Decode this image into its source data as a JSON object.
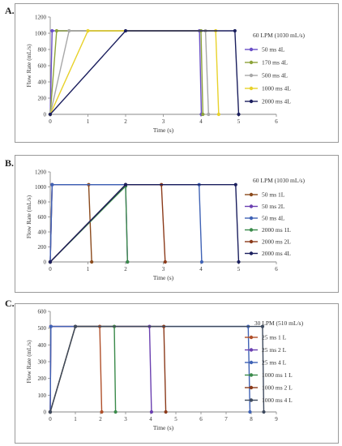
{
  "chart_data": [
    {
      "panel": "A.",
      "type": "line",
      "xlabel": "Time (s)",
      "ylabel": "Flow Rate (mL/s)",
      "xlim": [
        0,
        6
      ],
      "ylim": [
        0,
        1200
      ],
      "xticks": [
        0,
        1,
        2,
        3,
        4,
        5,
        6
      ],
      "yticks": [
        0,
        200,
        400,
        600,
        800,
        1000,
        1200
      ],
      "legend_title": "60 LPM (1030 mL/s)",
      "legend_position": "right",
      "series": [
        {
          "name": "50 ms 4L",
          "color": "#6a4fc7",
          "x": [
            0,
            0.05,
            3.96,
            4.01
          ],
          "y": [
            0,
            1030,
            1030,
            0
          ]
        },
        {
          "name": "170 ms 4L",
          "color": "#8da33a",
          "x": [
            0,
            0.17,
            4.0,
            4.05
          ],
          "y": [
            0,
            1030,
            1030,
            0
          ]
        },
        {
          "name": "500 ms 4L",
          "color": "#a8a8a8",
          "x": [
            0,
            0.5,
            4.12,
            4.2
          ],
          "y": [
            0,
            1030,
            1030,
            0
          ]
        },
        {
          "name": "1000 ms 4L",
          "color": "#e8d22a",
          "x": [
            0,
            1.0,
            4.39,
            4.47
          ],
          "y": [
            0,
            1030,
            1030,
            0
          ]
        },
        {
          "name": "2000 ms 4L",
          "color": "#1b1f5e",
          "x": [
            0,
            2.0,
            4.9,
            5.0
          ],
          "y": [
            0,
            1030,
            1030,
            0
          ]
        }
      ]
    },
    {
      "panel": "B.",
      "type": "line",
      "xlabel": "Time (s)",
      "ylabel": "Flow Rate (mL/s)",
      "xlim": [
        0,
        6
      ],
      "ylim": [
        0,
        1200
      ],
      "xticks": [
        0,
        1,
        2,
        3,
        4,
        5,
        6
      ],
      "yticks": [
        0,
        200,
        400,
        600,
        800,
        1000,
        1200
      ],
      "legend_title": "60 LPM (1030 mL/s)",
      "legend_position": "right",
      "series": [
        {
          "name": "50 ms 1L",
          "color": "#8b4a1c",
          "x": [
            0,
            0.05,
            1.02,
            1.1
          ],
          "y": [
            0,
            1030,
            1030,
            0
          ]
        },
        {
          "name": "50 ms 2L",
          "color": "#6a3fb0",
          "x": [
            0,
            0.05,
            2.0,
            2.05
          ],
          "y": [
            0,
            1030,
            1030,
            0
          ]
        },
        {
          "name": "50 ms 4L",
          "color": "#3f62b5",
          "x": [
            0,
            0.05,
            3.95,
            4.02
          ],
          "y": [
            0,
            1030,
            1030,
            0
          ]
        },
        {
          "name": "2000 ms 1L",
          "color": "#3a8a4a",
          "x": [
            0,
            2.0,
            2.05
          ],
          "y": [
            0,
            1010,
            0
          ]
        },
        {
          "name": "2000 ms 2L",
          "color": "#8b3a1a",
          "x": [
            0,
            2.0,
            2.95,
            3.05
          ],
          "y": [
            0,
            1030,
            1030,
            0
          ]
        },
        {
          "name": "2000 ms 4L",
          "color": "#1b1f5e",
          "x": [
            0,
            2.0,
            4.92,
            5.0
          ],
          "y": [
            0,
            1030,
            1030,
            0
          ]
        }
      ]
    },
    {
      "panel": "C.",
      "type": "line",
      "xlabel": "Time (s)",
      "ylabel": "Flow Rate (mL/s)",
      "xlim": [
        0,
        9
      ],
      "ylim": [
        0,
        600
      ],
      "xticks": [
        0,
        1,
        2,
        3,
        4,
        5,
        6,
        7,
        8,
        9
      ],
      "yticks": [
        0,
        100,
        200,
        300,
        400,
        500,
        600
      ],
      "legend_title": "30 LPM (510 mL/s)",
      "legend_position": "right",
      "series": [
        {
          "name": "25 ms 1 L",
          "color": "#b0502a",
          "x": [
            0,
            0.025,
            1.97,
            2.05
          ],
          "y": [
            0,
            510,
            510,
            0
          ]
        },
        {
          "name": "25 ms 2 L",
          "color": "#6a3fb0",
          "x": [
            0,
            0.025,
            3.95,
            4.03
          ],
          "y": [
            0,
            510,
            510,
            0
          ]
        },
        {
          "name": "25 ms 4 L",
          "color": "#3f62b5",
          "x": [
            0,
            0.025,
            7.88,
            7.95
          ],
          "y": [
            0,
            510,
            510,
            0
          ]
        },
        {
          "name": "1000 ms 1 L",
          "color": "#3a8a4a",
          "x": [
            0,
            1.0,
            2.55,
            2.6
          ],
          "y": [
            0,
            510,
            510,
            0
          ]
        },
        {
          "name": "1000 ms 2 L",
          "color": "#8b3a1a",
          "x": [
            0,
            1.0,
            4.52,
            4.6
          ],
          "y": [
            0,
            510,
            510,
            0
          ]
        },
        {
          "name": "1000 ms 4 L",
          "color": "#3e4a5e",
          "x": [
            0,
            1.0,
            8.45,
            8.5
          ],
          "y": [
            0,
            510,
            510,
            0
          ]
        }
      ]
    }
  ]
}
